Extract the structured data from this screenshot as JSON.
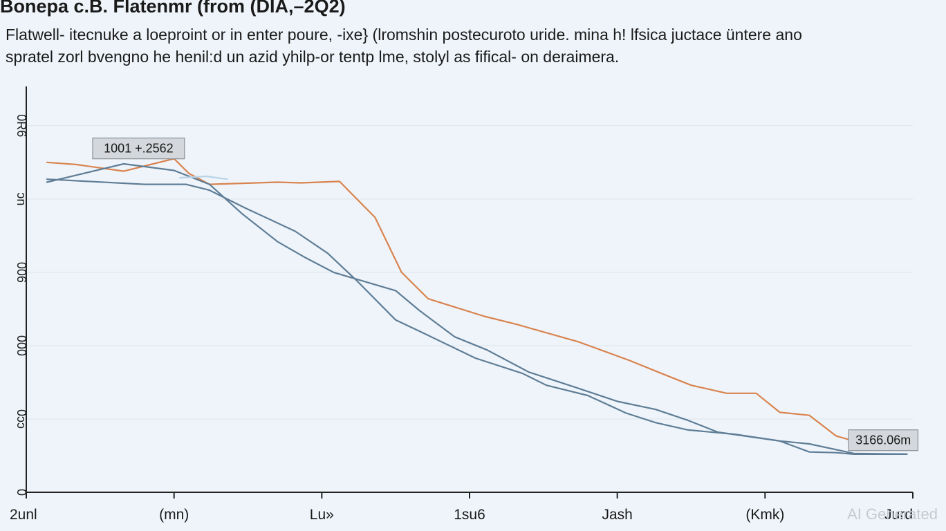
{
  "title": "Bonepa c.B. Flatenmr (from (DIA,–2Q2)",
  "subtitle_lines": [
    "Flatwell- itecnuke a loeproint or in enter poure, -ixe} (lromshin postecuroto uride. mina h! lfsica juctace üntere ano",
    "spratel zorl bvengno he henil:d un azid yhilp-or tentp lme, stolyl as fifical- on deraimera."
  ],
  "watermark": "AI Generated",
  "colors": {
    "background": "#eef4f9",
    "orange": "#d9834f",
    "slate": "#5f7d96",
    "light_blue": "#b9d3e6",
    "axis": "#222222",
    "grid": "#dfe6ec"
  },
  "chart_data": {
    "type": "line",
    "x_tick_labels": [
      "2unl",
      "(mn)",
      "Lu»",
      "1su6",
      "Jash",
      "(Kmk)",
      "Jurd"
    ],
    "y_tick_labels": [
      "0",
      "0ɔɔ",
      "000",
      "006",
      "ɔn",
      "0R6"
    ],
    "y_tick_values": [
      0,
      1,
      2,
      3,
      4,
      5
    ],
    "xlim": [
      0,
      30
    ],
    "ylim": [
      0,
      5.3
    ],
    "grid": true,
    "series": [
      {
        "color": "#d9834f",
        "x": [
          0.7,
          1.7,
          3.3,
          5.0,
          5.5,
          6.2,
          8.5,
          9.3,
          10.6,
          11.8,
          12.7,
          13.6,
          15.5,
          16.6,
          18.7,
          20.4,
          21.5,
          22.5,
          23.7,
          24.7,
          25.5,
          26.5,
          27.4,
          28.0,
          29.8
        ],
        "y": [
          4.5,
          4.47,
          4.38,
          4.55,
          4.35,
          4.2,
          4.23,
          4.22,
          4.24,
          3.75,
          3.0,
          2.64,
          2.4,
          2.29,
          2.05,
          1.8,
          1.62,
          1.46,
          1.35,
          1.35,
          1.09,
          1.05,
          0.77,
          0.7,
          0.75
        ]
      },
      {
        "color": "#5f7d96",
        "x": [
          0.7,
          3.3,
          5.0,
          6.2,
          7.3,
          8.5,
          9.4,
          10.4,
          11.4,
          12.5,
          13.3,
          14.5,
          15.6,
          17.0,
          18.6,
          20.0,
          21.3,
          22.4,
          23.4,
          25.5,
          26.5,
          27.4,
          28.0,
          29.8
        ],
        "y": [
          4.23,
          4.48,
          4.39,
          4.2,
          3.8,
          3.42,
          3.21,
          3.0,
          2.88,
          2.75,
          2.48,
          2.12,
          1.94,
          1.64,
          1.43,
          1.24,
          1.13,
          0.98,
          0.82,
          0.7,
          0.55,
          0.54,
          0.52,
          0.52
        ]
      },
      {
        "color": "#5f7d96",
        "x": [
          0.7,
          4.0,
          5.4,
          6.2,
          7.4,
          9.1,
          10.2,
          11.2,
          12.5,
          13.5,
          15.2,
          16.8,
          17.6,
          19.0,
          20.3,
          21.3,
          22.4,
          24.0,
          25.5,
          26.5,
          28.0,
          29.8
        ],
        "y": [
          4.27,
          4.2,
          4.2,
          4.12,
          3.88,
          3.56,
          3.26,
          2.88,
          2.35,
          2.16,
          1.83,
          1.62,
          1.46,
          1.32,
          1.08,
          0.95,
          0.85,
          0.79,
          0.7,
          0.66,
          0.53,
          0.52
        ]
      },
      {
        "color": "#b9d3e6",
        "x": [
          5.2,
          6.1,
          6.8
        ],
        "y": [
          4.29,
          4.31,
          4.27
        ]
      }
    ],
    "annotations": [
      {
        "text": "1001 +.2562",
        "x": 3.8,
        "y": 4.69
      },
      {
        "text": "3166.06m",
        "x": 29.0,
        "y": 0.71
      }
    ]
  }
}
